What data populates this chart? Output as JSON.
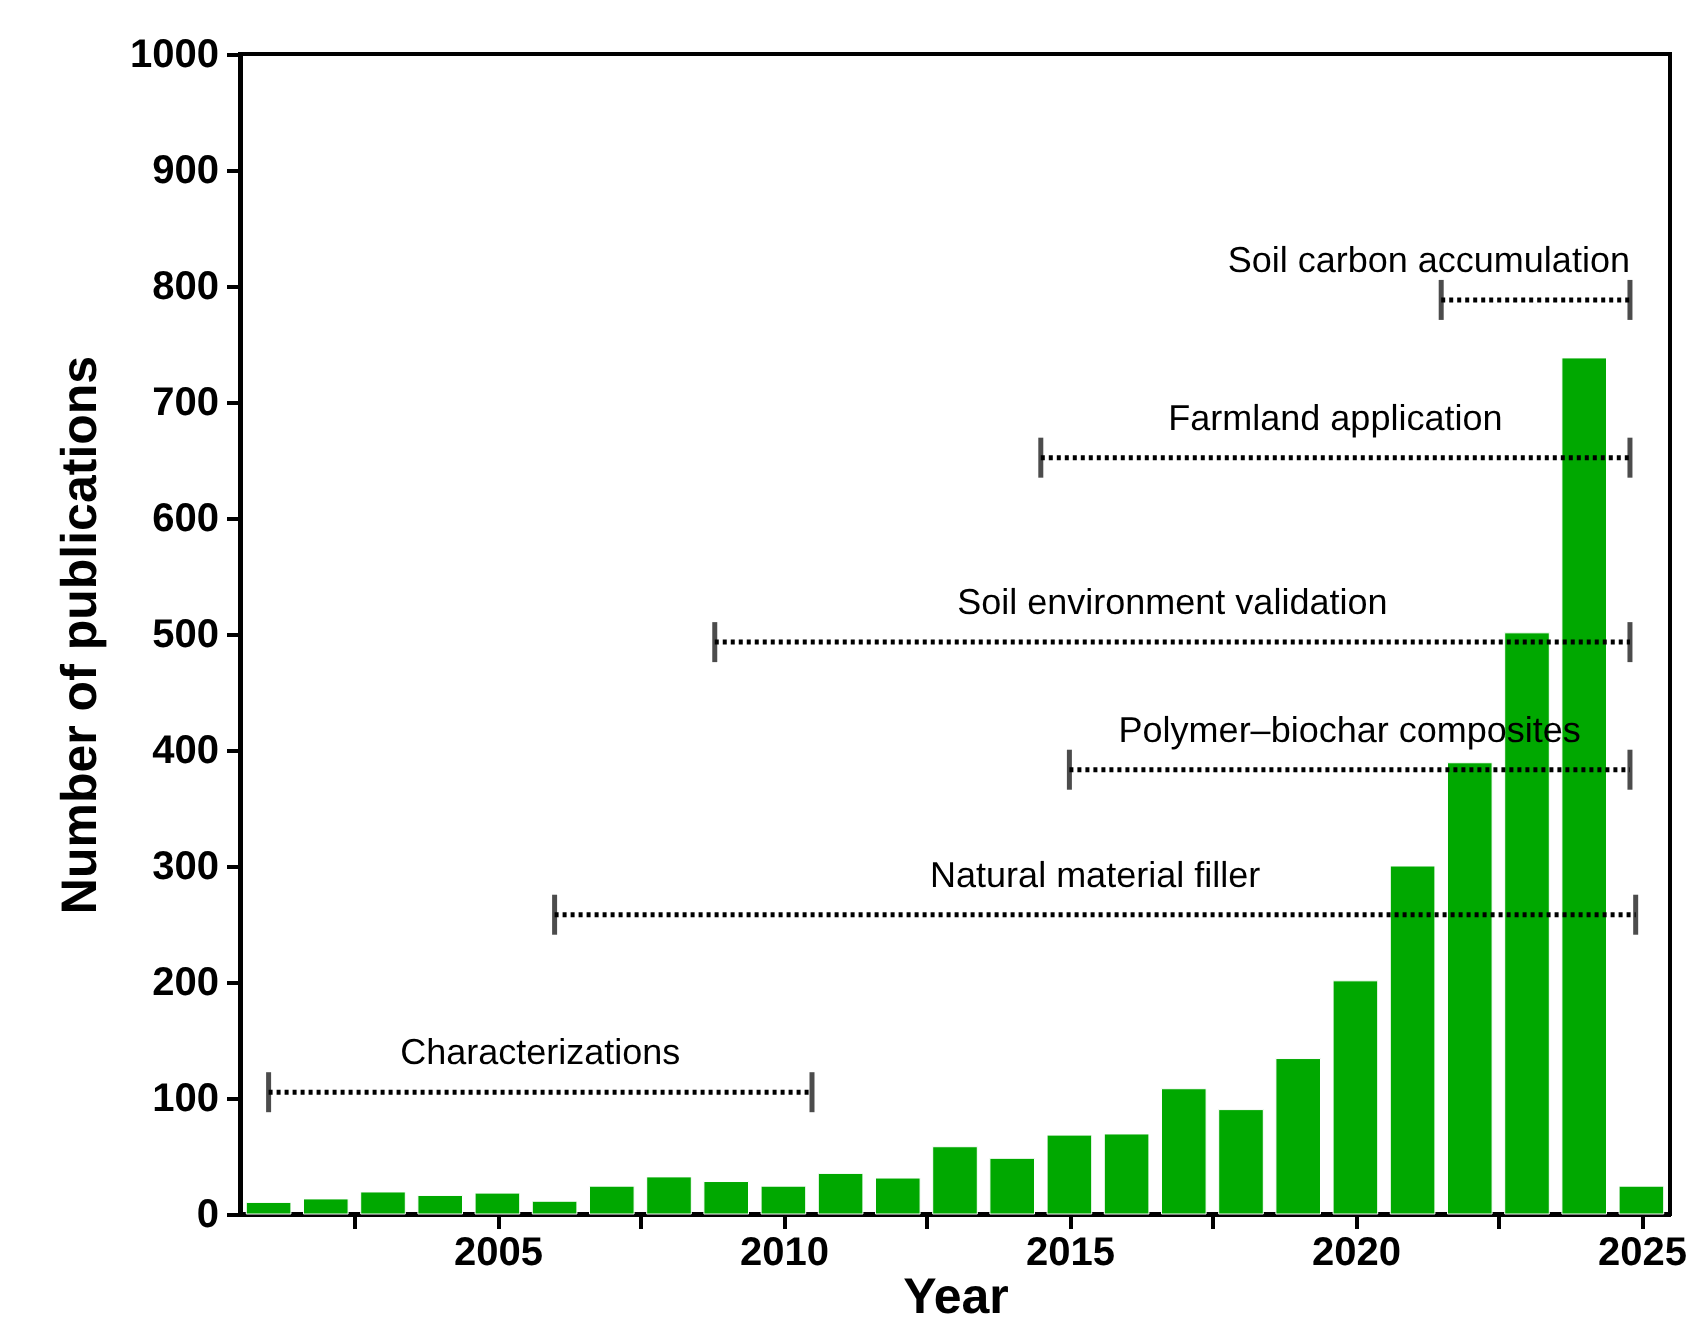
{
  "chart_data": {
    "type": "bar",
    "xlabel": "Year",
    "ylabel": "Number of publications",
    "x": [
      2001,
      2002,
      2003,
      2004,
      2005,
      2006,
      2007,
      2008,
      2009,
      2010,
      2011,
      2012,
      2013,
      2014,
      2015,
      2016,
      2017,
      2018,
      2019,
      2020,
      2021,
      2022,
      2023,
      2024,
      2025
    ],
    "series": [
      {
        "color": "#00a800",
        "values": [
          10,
          13,
          19,
          16,
          18,
          11,
          24,
          32,
          28,
          24,
          35,
          31,
          58,
          48,
          68,
          69,
          108,
          90,
          134,
          201,
          300,
          389,
          501,
          738,
          24
        ]
      },
      {
        "type": "line",
        "name": "Characterizations",
        "color": "#000000",
        "x": [
          2001,
          2010.5
        ],
        "values": [
          105,
          105
        ]
      },
      {
        "type": "line",
        "name": "Natural material filler",
        "color": "#000000",
        "x": [
          2006,
          2024.9
        ],
        "values": [
          258,
          258
        ]
      },
      {
        "type": "line",
        "name": "Polymer–biochar composites",
        "color": "#000000",
        "x": [
          2015,
          2024.8
        ],
        "values": [
          383,
          383
        ]
      },
      {
        "type": "line",
        "name": "Soil environment validation",
        "color": "#000000",
        "x": [
          2008.8,
          2024.8
        ],
        "values": [
          493,
          493
        ]
      },
      {
        "type": "line",
        "name": "Farmland application",
        "color": "#000000",
        "x": [
          2014.5,
          2024.8
        ],
        "values": [
          652,
          652
        ]
      },
      {
        "type": "line",
        "name": "Soil carbon accumulation",
        "color": "#000000",
        "x": [
          2021.5,
          2024.8
        ],
        "values": [
          788,
          788
        ]
      }
    ],
    "xlim": [
      2000.5,
      2025.5
    ],
    "xticks": [
      {
        "value": 2002.5,
        "label": null
      },
      2005,
      {
        "value": 2007.5,
        "label": null
      },
      2010,
      {
        "value": 2012.5,
        "label": null
      },
      2015,
      {
        "value": 2017.5,
        "label": null
      },
      2020,
      {
        "value": 2022.5,
        "label": null
      },
      2025
    ],
    "ylim": [
      0,
      1000
    ],
    "yticks": [
      0,
      100,
      200,
      300,
      400,
      500,
      600,
      700,
      800,
      900,
      1000
    ],
    "line_style": "dotted",
    "grid": false
  }
}
